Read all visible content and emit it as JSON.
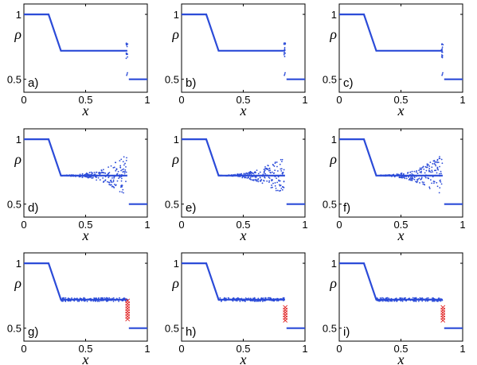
{
  "figure": {
    "background": "#ffffff"
  },
  "chart_data": [
    {
      "type": "scatter",
      "panel_label": "a)",
      "variant": "clean",
      "xlabel": "x",
      "ylabel": "ρ",
      "xlim": [
        0,
        1
      ],
      "ylim": [
        0.4,
        1.08
      ],
      "xticks": [
        "0",
        "0.5",
        "1"
      ],
      "yticks": [
        "0.5",
        "1"
      ],
      "series": [
        {
          "color": "#2b4bd8",
          "x": [
            0,
            0.2,
            0.3,
            0.838
          ],
          "y": [
            1.0,
            1.0,
            0.72,
            0.72
          ]
        },
        {
          "color": "#2b4bd8",
          "x": [
            0.85,
            1.0
          ],
          "y": [
            0.5,
            0.5
          ]
        }
      ]
    },
    {
      "type": "scatter",
      "panel_label": "b)",
      "variant": "clean",
      "xlabel": "x",
      "ylabel": "ρ",
      "xlim": [
        0,
        1
      ],
      "ylim": [
        0.4,
        1.08
      ],
      "xticks": [
        "0",
        "0.5",
        "1"
      ],
      "yticks": [
        "0.5",
        "1"
      ],
      "series": [
        {
          "color": "#2b4bd8",
          "x": [
            0,
            0.2,
            0.3,
            0.838
          ],
          "y": [
            1.0,
            1.0,
            0.72,
            0.72
          ]
        },
        {
          "color": "#2b4bd8",
          "x": [
            0.85,
            1.0
          ],
          "y": [
            0.5,
            0.5
          ]
        }
      ]
    },
    {
      "type": "scatter",
      "panel_label": "c)",
      "variant": "clean",
      "xlabel": "x",
      "ylabel": "ρ",
      "xlim": [
        0,
        1
      ],
      "ylim": [
        0.4,
        1.08
      ],
      "xticks": [
        "0",
        "0.5",
        "1"
      ],
      "yticks": [
        "0.5",
        "1"
      ],
      "series": [
        {
          "color": "#2b4bd8",
          "x": [
            0,
            0.2,
            0.3,
            0.838
          ],
          "y": [
            1.0,
            1.0,
            0.72,
            0.72
          ]
        },
        {
          "color": "#2b4bd8",
          "x": [
            0.85,
            1.0
          ],
          "y": [
            0.5,
            0.5
          ]
        }
      ]
    },
    {
      "type": "scatter",
      "panel_label": "d)",
      "variant": "oscillating",
      "xlabel": "x",
      "ylabel": "ρ",
      "xlim": [
        0,
        1
      ],
      "ylim": [
        0.4,
        1.08
      ],
      "xticks": [
        "0",
        "0.5",
        "1"
      ],
      "yticks": [
        "0.5",
        "1"
      ],
      "series": [
        {
          "color": "#2b4bd8",
          "x": [
            0,
            0.2,
            0.3,
            0.838
          ],
          "y": [
            1.0,
            1.0,
            0.72,
            0.72
          ]
        },
        {
          "color": "#2b4bd8",
          "x": [
            0.85,
            1.0
          ],
          "y": [
            0.5,
            0.5
          ]
        }
      ]
    },
    {
      "type": "scatter",
      "panel_label": "e)",
      "variant": "oscillating",
      "xlabel": "x",
      "ylabel": "ρ",
      "xlim": [
        0,
        1
      ],
      "ylim": [
        0.4,
        1.08
      ],
      "xticks": [
        "0",
        "0.5",
        "1"
      ],
      "yticks": [
        "0.5",
        "1"
      ],
      "series": [
        {
          "color": "#2b4bd8",
          "x": [
            0,
            0.2,
            0.3,
            0.838
          ],
          "y": [
            1.0,
            1.0,
            0.72,
            0.72
          ]
        },
        {
          "color": "#2b4bd8",
          "x": [
            0.85,
            1.0
          ],
          "y": [
            0.5,
            0.5
          ]
        }
      ]
    },
    {
      "type": "scatter",
      "panel_label": "f)",
      "variant": "oscillating",
      "xlabel": "x",
      "ylabel": "ρ",
      "xlim": [
        0,
        1
      ],
      "ylim": [
        0.4,
        1.08
      ],
      "xticks": [
        "0",
        "0.5",
        "1"
      ],
      "yticks": [
        "0.5",
        "1"
      ],
      "series": [
        {
          "color": "#2b4bd8",
          "x": [
            0,
            0.2,
            0.3,
            0.838
          ],
          "y": [
            1.0,
            1.0,
            0.72,
            0.72
          ]
        },
        {
          "color": "#2b4bd8",
          "x": [
            0.85,
            1.0
          ],
          "y": [
            0.5,
            0.5
          ]
        }
      ]
    },
    {
      "type": "scatter",
      "panel_label": "g)",
      "variant": "crosses",
      "xlabel": "x",
      "ylabel": "ρ",
      "xlim": [
        0,
        1
      ],
      "ylim": [
        0.4,
        1.08
      ],
      "xticks": [
        "0",
        "0.5",
        "1"
      ],
      "yticks": [
        "0.5",
        "1"
      ],
      "series": [
        {
          "color": "#2b4bd8",
          "x": [
            0,
            0.2,
            0.3,
            0.838
          ],
          "y": [
            1.0,
            1.0,
            0.72,
            0.72
          ]
        },
        {
          "color": "#2b4bd8",
          "x": [
            0.85,
            1.0
          ],
          "y": [
            0.5,
            0.5
          ]
        },
        {
          "color": "#e02020",
          "marker": "x",
          "x": [
            0.84,
            0.84,
            0.84,
            0.84,
            0.84,
            0.84,
            0.84,
            0.84
          ],
          "y": [
            0.71,
            0.69,
            0.67,
            0.65,
            0.63,
            0.61,
            0.59,
            0.57
          ]
        }
      ]
    },
    {
      "type": "scatter",
      "panel_label": "h)",
      "variant": "crosses",
      "xlabel": "x",
      "ylabel": "ρ",
      "xlim": [
        0,
        1
      ],
      "ylim": [
        0.4,
        1.08
      ],
      "xticks": [
        "0",
        "0.5",
        "1"
      ],
      "yticks": [
        "0.5",
        "1"
      ],
      "series": [
        {
          "color": "#2b4bd8",
          "x": [
            0,
            0.2,
            0.3,
            0.838
          ],
          "y": [
            1.0,
            1.0,
            0.72,
            0.72
          ]
        },
        {
          "color": "#2b4bd8",
          "x": [
            0.85,
            1.0
          ],
          "y": [
            0.5,
            0.5
          ]
        },
        {
          "color": "#e02020",
          "marker": "x",
          "x": [
            0.84,
            0.84,
            0.84,
            0.84,
            0.84,
            0.84
          ],
          "y": [
            0.66,
            0.64,
            0.62,
            0.6,
            0.58,
            0.56
          ]
        }
      ]
    },
    {
      "type": "scatter",
      "panel_label": "i)",
      "variant": "crosses",
      "xlabel": "x",
      "ylabel": "ρ",
      "xlim": [
        0,
        1
      ],
      "ylim": [
        0.4,
        1.08
      ],
      "xticks": [
        "0",
        "0.5",
        "1"
      ],
      "yticks": [
        "0.5",
        "1"
      ],
      "series": [
        {
          "color": "#2b4bd8",
          "x": [
            0,
            0.2,
            0.3,
            0.838
          ],
          "y": [
            1.0,
            1.0,
            0.72,
            0.72
          ]
        },
        {
          "color": "#2b4bd8",
          "x": [
            0.85,
            1.0
          ],
          "y": [
            0.5,
            0.5
          ]
        },
        {
          "color": "#e02020",
          "marker": "x",
          "x": [
            0.84,
            0.84,
            0.84,
            0.84,
            0.84,
            0.84
          ],
          "y": [
            0.66,
            0.64,
            0.62,
            0.6,
            0.58,
            0.56
          ]
        }
      ]
    }
  ]
}
